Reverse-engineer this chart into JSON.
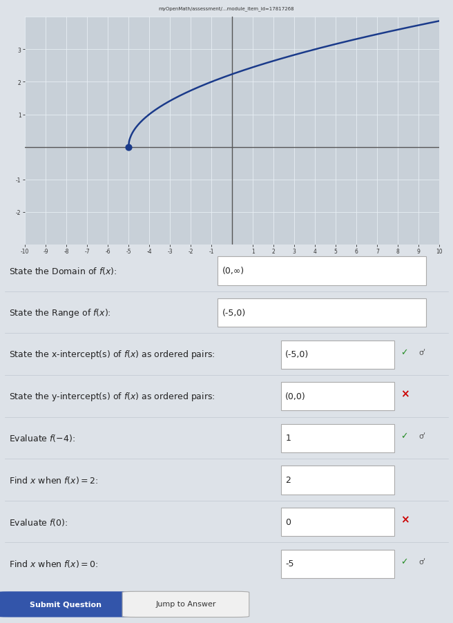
{
  "graph": {
    "xlim": [
      -10,
      10
    ],
    "ylim": [
      -3,
      4
    ],
    "xticks": [
      -10,
      -9,
      -8,
      -7,
      -6,
      -5,
      -4,
      -3,
      -2,
      -1,
      1,
      2,
      3,
      4,
      5,
      6,
      7,
      8,
      9,
      10
    ],
    "yticks": [
      -2,
      -1,
      1,
      2,
      3
    ],
    "curve_color": "#1a3a8a",
    "curve_linewidth": 1.8,
    "dot_color": "#1a3a8a",
    "dot_size": 40,
    "start_x": -5,
    "bg_color": "#c8d0d8",
    "grid_color": "#e8eef4",
    "axis_color": "#555555"
  },
  "qa": [
    {
      "label": "State the Domain of $f(x)$:",
      "answer": "(0,∞)",
      "correct": null,
      "has_sigma": false,
      "box_wide": true
    },
    {
      "label": "State the Range of $f(x)$:",
      "answer": "(-5,0)",
      "correct": null,
      "has_sigma": false,
      "box_wide": true
    },
    {
      "label": "State the x-intercept(s) of $f(x)$ as ordered pairs:",
      "answer": "(-5,0)",
      "correct": true,
      "has_sigma": true,
      "box_wide": false
    },
    {
      "label": "State the y-intercept(s) of $f(x)$ as ordered pairs:",
      "answer": "(0,0)",
      "correct": false,
      "has_sigma": false,
      "box_wide": false
    },
    {
      "label": "Evaluate $f(-4)$:",
      "answer": "1",
      "correct": true,
      "has_sigma": true,
      "box_wide": false
    },
    {
      "label": "Find $x$ when $f(x)=2$:",
      "answer": "2",
      "correct": null,
      "has_sigma": false,
      "box_wide": false
    },
    {
      "label": "Evaluate $f(0)$:",
      "answer": "0",
      "correct": false,
      "has_sigma": false,
      "box_wide": false
    },
    {
      "label": "Find $x$ when $f(x)=0$:",
      "answer": "-5",
      "correct": true,
      "has_sigma": true,
      "box_wide": false
    }
  ],
  "buttons": [
    "Submit Question",
    "Jump to Answer"
  ],
  "page_bg": "#dde2e8",
  "answer_box_color": "#ffffff",
  "answer_box_border": "#aaaaaa",
  "correct_color": "#228B22",
  "incorrect_color": "#cc0000",
  "label_color": "#222222",
  "label_fontsize": 9,
  "answer_fontsize": 9
}
